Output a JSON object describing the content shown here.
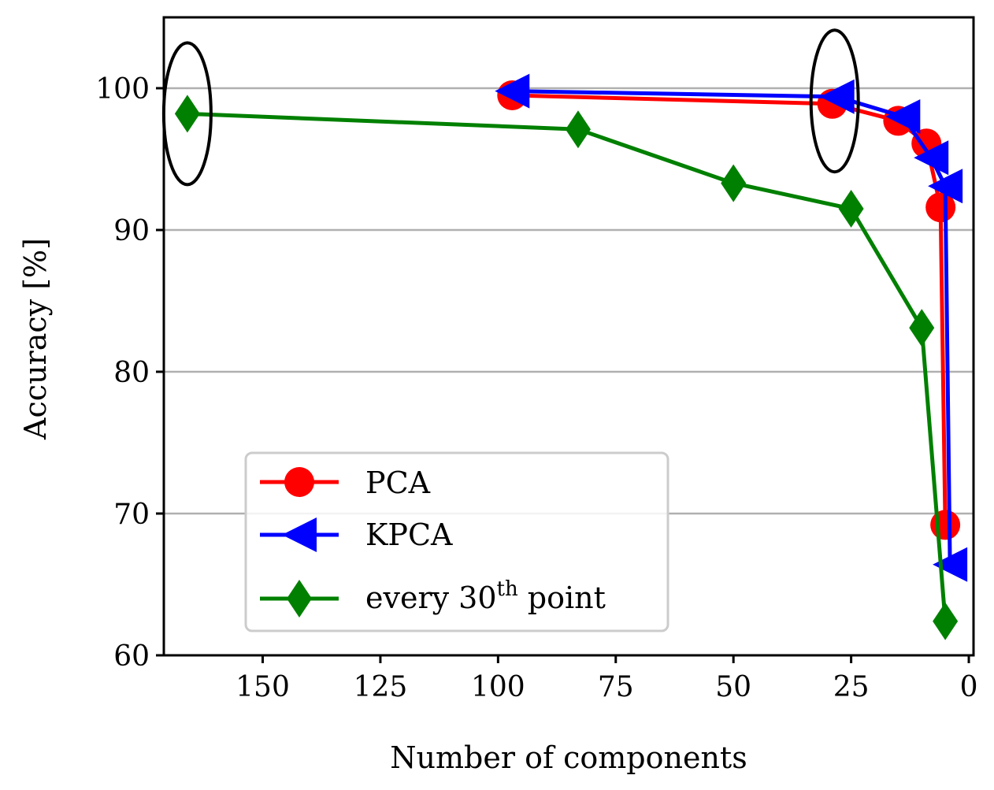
{
  "chart_data": {
    "type": "line",
    "title": "",
    "xlabel": "Number of components",
    "ylabel": "Accuracy [%]",
    "xlim": [
      171,
      -1
    ],
    "ylim": [
      60,
      105
    ],
    "x_inverted": true,
    "grid": "horizontal",
    "xticks": [
      150,
      125,
      100,
      75,
      50,
      25,
      0
    ],
    "yticks": [
      60,
      70,
      80,
      90,
      100
    ],
    "legend_position": "lower-left",
    "series": [
      {
        "name": "PCA",
        "color": "#ff0000",
        "marker": "circle",
        "x": [
          97,
          29,
          15,
          9,
          6,
          5
        ],
        "y": [
          99.5,
          98.9,
          97.7,
          96.1,
          91.6,
          69.2
        ]
      },
      {
        "name": "KPCA",
        "color": "#0000ff",
        "marker": "triangle-left",
        "x": [
          97,
          28,
          14,
          8,
          5,
          4
        ],
        "y": [
          99.8,
          99.4,
          98.0,
          95.1,
          93.1,
          66.4
        ]
      },
      {
        "name": "every 30th point",
        "color": "#008000",
        "marker": "diamond",
        "x": [
          166,
          83,
          50,
          25,
          10,
          5
        ],
        "y": [
          98.2,
          97.1,
          93.3,
          91.5,
          83.1,
          62.4
        ]
      }
    ],
    "legend_labels": {
      "pca": "PCA",
      "kpca": "KPCA",
      "every_prefix": "every 30",
      "every_sup": "th",
      "every_suffix": " point"
    },
    "annotations": [
      {
        "type": "ellipse",
        "label": "highlight",
        "center_x": 166,
        "center_y": 98.2
      },
      {
        "type": "ellipse",
        "label": "highlight",
        "center_x": 28.5,
        "center_y": 99.1
      }
    ]
  }
}
